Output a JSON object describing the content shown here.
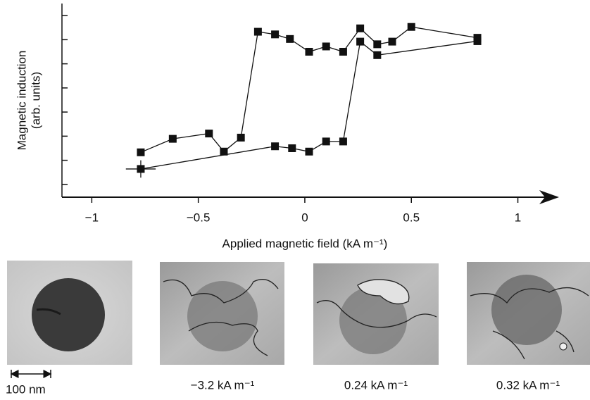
{
  "chart_data": {
    "type": "line",
    "xlabel": "Applied magnetic field (kA m⁻¹)",
    "ylabel": [
      "Magnetic induction",
      "(arb. units)"
    ],
    "xlim": [
      -1.14,
      1.18
    ],
    "ylim": [
      0.47,
      8.5
    ],
    "xticks": [
      {
        "value": -1,
        "label": "−1"
      },
      {
        "value": -0.5,
        "label": "−0.5"
      },
      0,
      0.5,
      1
    ],
    "yticks": [
      1,
      2,
      3,
      4,
      5,
      6,
      7,
      8
    ],
    "color": "#111111",
    "series": [
      {
        "x": [
          -0.77,
          -0.62,
          -0.45,
          -0.38,
          -0.3,
          -0.22,
          -0.14,
          -0.07,
          0.02,
          0.1,
          0.18,
          0.26,
          0.34,
          0.41,
          0.5,
          0.81
        ],
        "values": [
          2.33,
          2.89,
          3.11,
          2.36,
          2.94,
          7.33,
          7.22,
          7.03,
          6.5,
          6.72,
          6.5,
          7.47,
          6.81,
          6.92,
          7.53,
          7.08
        ]
      },
      {
        "x": [
          -0.77,
          -0.14,
          -0.06,
          0.02,
          0.1,
          0.18,
          0.26,
          0.34,
          0.81
        ],
        "values": [
          1.64,
          2.58,
          2.5,
          2.36,
          2.78,
          2.78,
          6.92,
          6.36,
          6.94
        ],
        "x_error": [
          0.07,
          null,
          null,
          null,
          null,
          null,
          null,
          null,
          null
        ],
        "y_error": [
          0.36,
          null,
          null,
          null,
          null,
          null,
          null,
          null,
          null
        ]
      }
    ]
  },
  "scale_bar": "100 nm",
  "panels": [
    {
      "caption": "−3.2 kA m⁻¹"
    },
    {
      "caption": "0.24 kA m⁻¹"
    },
    {
      "caption": "0.32 kA m⁻¹"
    }
  ]
}
